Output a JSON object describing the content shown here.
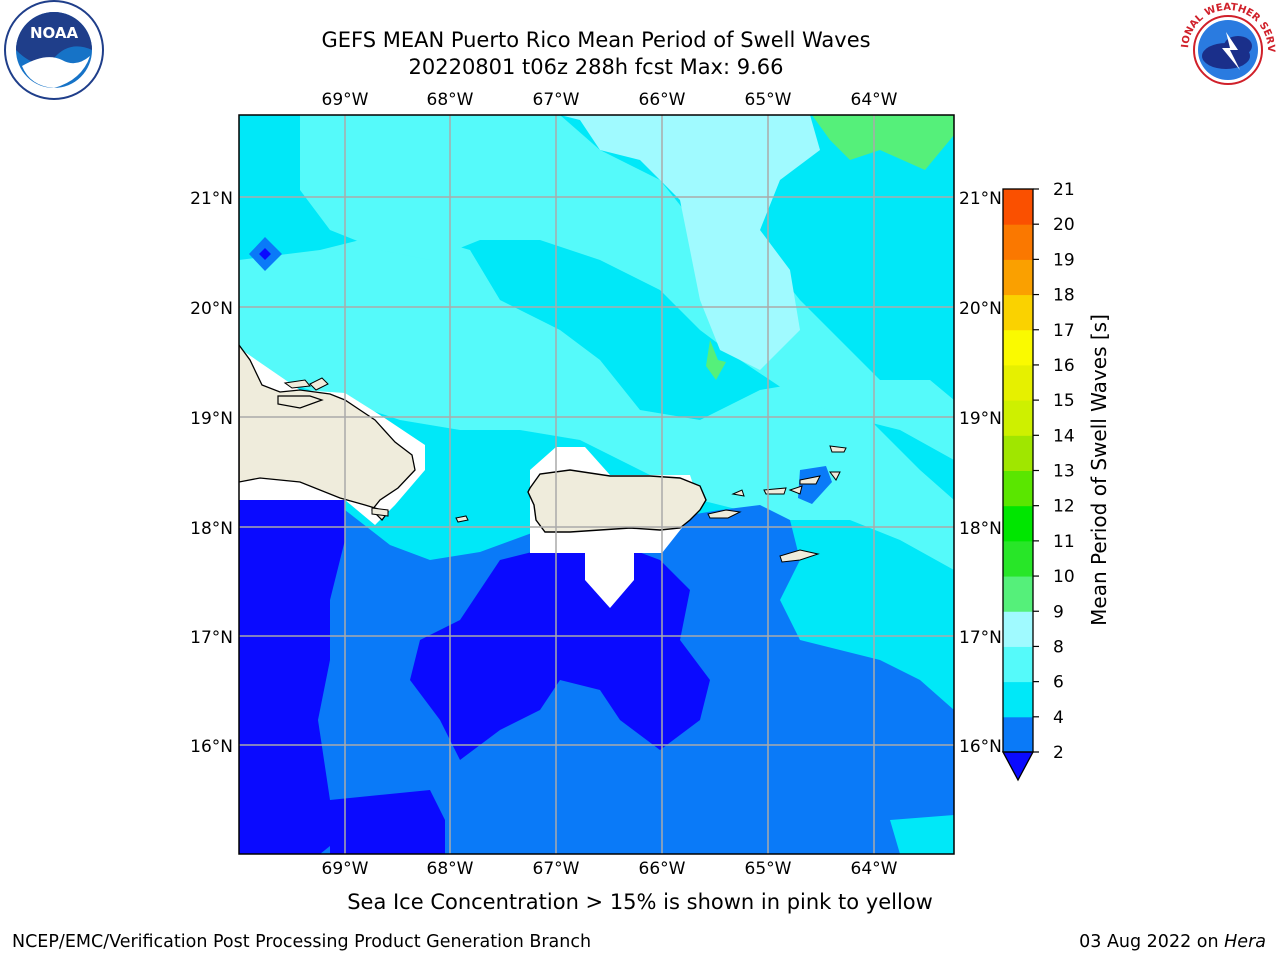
{
  "header": {
    "title_line1": "GEFS MEAN Puerto Rico Mean Period of Swell Waves",
    "title_line2": "20220801 t06z 288h fcst   Max: 9.66"
  },
  "logos": {
    "left": {
      "icon": "noaa-logo",
      "text": "NOAA"
    },
    "right": {
      "icon": "national-weather-service-logo",
      "text": "NATIONAL WEATHER SERVICE"
    }
  },
  "map": {
    "lon_labels": [
      "69°W",
      "68°W",
      "67°W",
      "66°W",
      "65°W",
      "64°W"
    ],
    "lat_labels": [
      "21°N",
      "20°N",
      "19°N",
      "18°N",
      "17°N",
      "16°N"
    ],
    "gridlines": true,
    "land_color": "#efecdc",
    "sea_ice_mask_color": "#ffffff"
  },
  "colorbar": {
    "label": "Mean Period of Swell Waves [s]",
    "ticks": [
      "2",
      "4",
      "6",
      "8",
      "9",
      "10",
      "11",
      "12",
      "13",
      "14",
      "15",
      "16",
      "17",
      "18",
      "19",
      "20",
      "21"
    ],
    "colors": [
      "#0a0aff",
      "#0a7af8",
      "#00e8f8",
      "#55fafa",
      "#a0faff",
      "#55f07a",
      "#28e628",
      "#00e600",
      "#5ae600",
      "#a0e600",
      "#cef000",
      "#e6f000",
      "#fafa00",
      "#fad200",
      "#faa000",
      "#fa7800",
      "#fa5000",
      "#fa1e00",
      "#fa0000"
    ],
    "extend": "min"
  },
  "caption": "Sea Ice Concentration > 15% is shown in pink to yellow",
  "footer": {
    "left": "NCEP/EMC/Verification Post Processing Product Generation Branch",
    "right_prefix": "03 Aug 2022 on ",
    "right_host": "Hera"
  }
}
